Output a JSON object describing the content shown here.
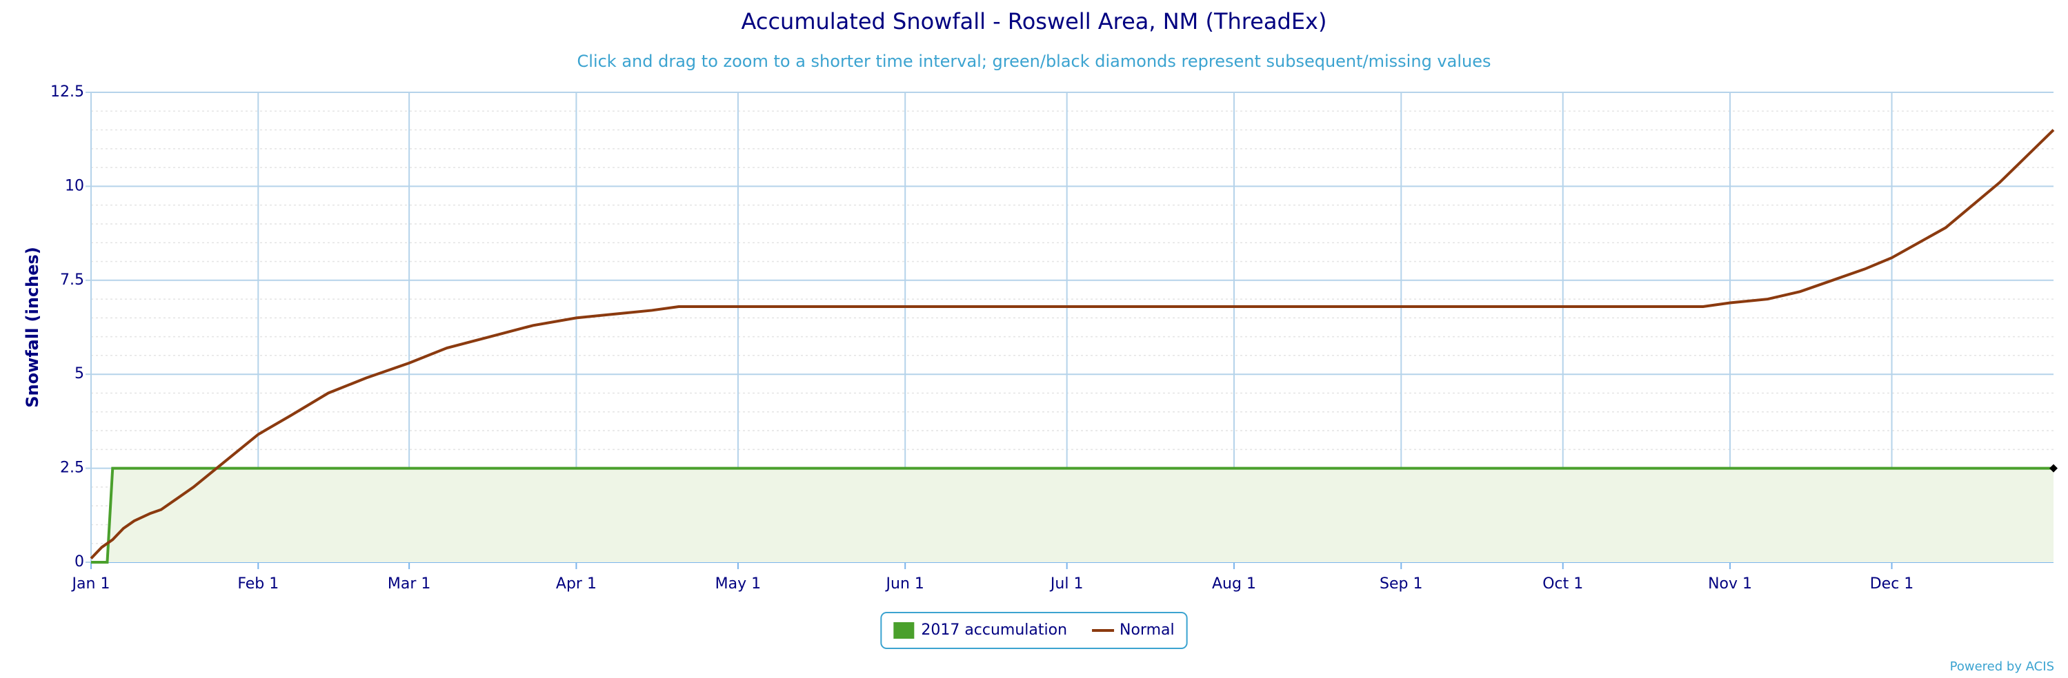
{
  "chart_data": {
    "type": "line",
    "title": "Accumulated Snowfall - Roswell Area, NM (ThreadEx)",
    "subtitle": "Click and drag to zoom to a shorter time interval; green/black diamonds represent subsequent/missing values",
    "y_label": "Snowfall (inches)",
    "credit": "Powered by ACIS",
    "xlim": [
      1,
      365
    ],
    "xticks": [
      {
        "value": 1,
        "label": "Jan 1"
      },
      {
        "value": 32,
        "label": "Feb 1"
      },
      {
        "value": 60,
        "label": "Mar 1"
      },
      {
        "value": 91,
        "label": "Apr 1"
      },
      {
        "value": 121,
        "label": "May 1"
      },
      {
        "value": 152,
        "label": "Jun 1"
      },
      {
        "value": 182,
        "label": "Jul 1"
      },
      {
        "value": 213,
        "label": "Aug 1"
      },
      {
        "value": 244,
        "label": "Sep 1"
      },
      {
        "value": 274,
        "label": "Oct 1"
      },
      {
        "value": 305,
        "label": "Nov 1"
      },
      {
        "value": 335,
        "label": "Dec 1"
      }
    ],
    "ylim": [
      0,
      12.5
    ],
    "yticks": [
      0,
      2.5,
      5,
      7.5,
      10,
      12.5
    ],
    "grid": true,
    "minor_grid": true,
    "legend": "bottom",
    "series": [
      {
        "name": "2017 accumulation",
        "type": "area",
        "color": "#4aa02c",
        "fill": "#eef5e6",
        "x": [
          1,
          4,
          5,
          365
        ],
        "values": [
          0,
          0,
          2.5,
          2.5
        ]
      },
      {
        "name": "Normal",
        "type": "line",
        "color": "#8b3a0f",
        "x": [
          1,
          3,
          5,
          7,
          9,
          12,
          14,
          20,
          26,
          32,
          38,
          45,
          52,
          60,
          67,
          75,
          83,
          91,
          98,
          105,
          110,
          300,
          305,
          312,
          318,
          324,
          330,
          335,
          340,
          345,
          350,
          355,
          360,
          365
        ],
        "values": [
          0.1,
          0.4,
          0.6,
          0.9,
          1.1,
          1.3,
          1.4,
          2.0,
          2.7,
          3.4,
          3.9,
          4.5,
          4.9,
          5.3,
          5.7,
          6.0,
          6.3,
          6.5,
          6.6,
          6.7,
          6.8,
          6.8,
          6.9,
          7.0,
          7.2,
          7.5,
          7.8,
          8.1,
          8.5,
          8.9,
          9.5,
          10.1,
          10.8,
          11.5
        ]
      }
    ]
  }
}
